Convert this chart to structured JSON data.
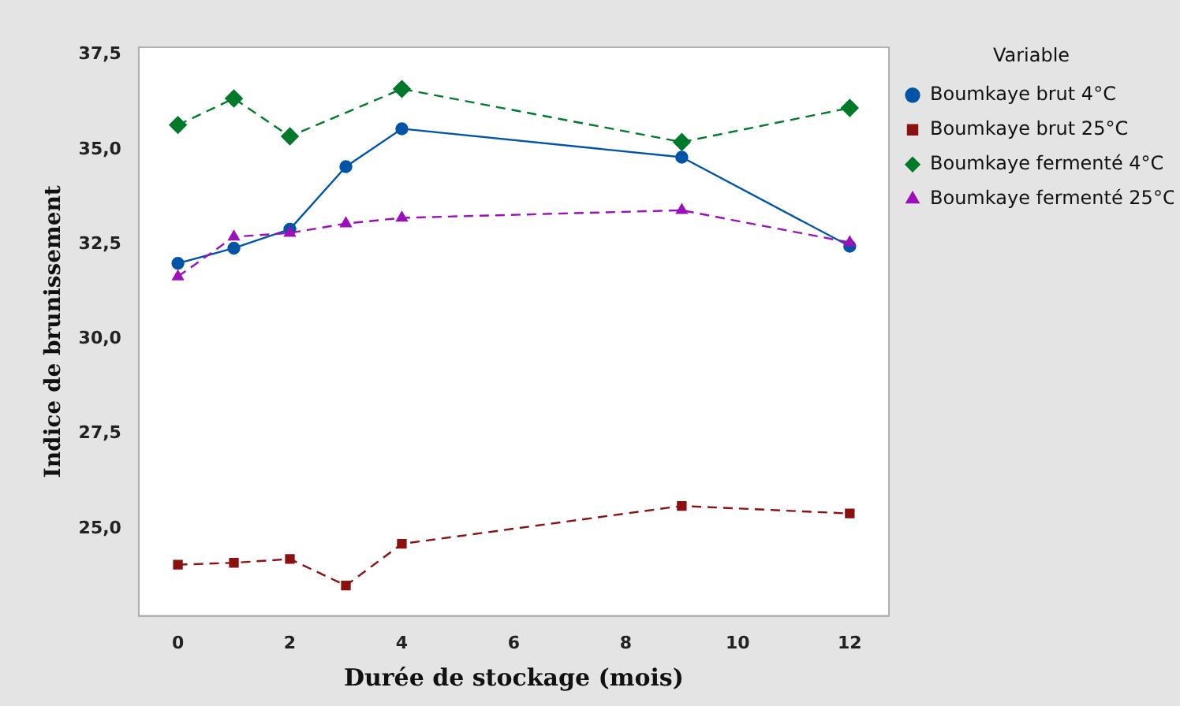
{
  "chart_data": {
    "type": "line",
    "xlabel": "Durée de stockage (mois)",
    "ylabel": "Indice de brunissement",
    "legend_title": "Variable",
    "legend": "right",
    "grid": false,
    "x": [
      0,
      1,
      2,
      3,
      4,
      9,
      12
    ],
    "xlim": [
      -0.7,
      12.7
    ],
    "xticks": [
      0,
      2,
      4,
      6,
      8,
      10,
      12
    ],
    "ylim": [
      22.7,
      37.7
    ],
    "yticks": [
      {
        "value": 25,
        "label": "25,0"
      },
      {
        "value": 27.5,
        "label": "27,5"
      },
      {
        "value": 30,
        "label": "30,0"
      },
      {
        "value": 32.5,
        "label": "32,5"
      },
      {
        "value": 35,
        "label": "35,0"
      },
      {
        "value": 37.5,
        "label": "37,5"
      }
    ],
    "series": [
      {
        "name": "Boumkaye brut 4°C",
        "color": "#0054a6",
        "marker": "circle",
        "line_style": "solid",
        "values": [
          32.0,
          32.4,
          32.9,
          34.55,
          35.55,
          34.8,
          32.45
        ]
      },
      {
        "name": "Boumkaye brut 25°C",
        "color": "#8b1010",
        "marker": "square",
        "line_style": "dashed",
        "values": [
          24.05,
          24.1,
          24.2,
          23.5,
          24.6,
          25.6,
          25.4
        ]
      },
      {
        "name": "Boumkaye fermenté 4°C",
        "color": "#007a2a",
        "marker": "diamond",
        "line_style": "dashed",
        "x": [
          0,
          1,
          2,
          4,
          9,
          12
        ],
        "values": [
          35.65,
          36.35,
          35.35,
          36.6,
          35.2,
          36.1
        ]
      },
      {
        "name": "Boumkaye fermenté 25°C",
        "color": "#9b10b8",
        "marker": "triangle",
        "line_style": "dashed",
        "values": [
          31.65,
          32.7,
          32.8,
          33.05,
          33.2,
          33.4,
          32.55
        ]
      }
    ]
  }
}
